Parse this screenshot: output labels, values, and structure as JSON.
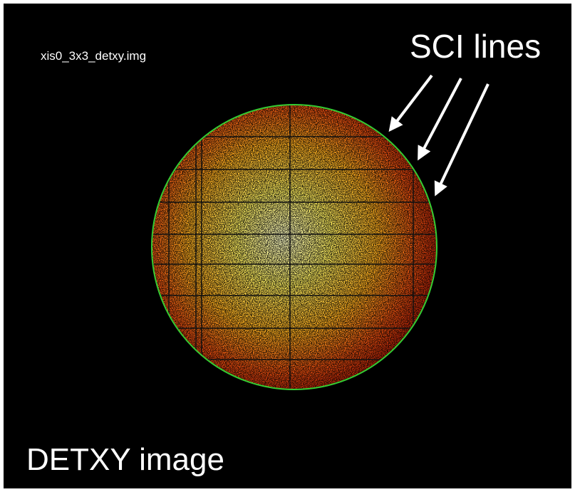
{
  "image_title": "xis0_3x3_detxy.img",
  "annotation": "SCI lines",
  "caption": "DETXY image"
}
